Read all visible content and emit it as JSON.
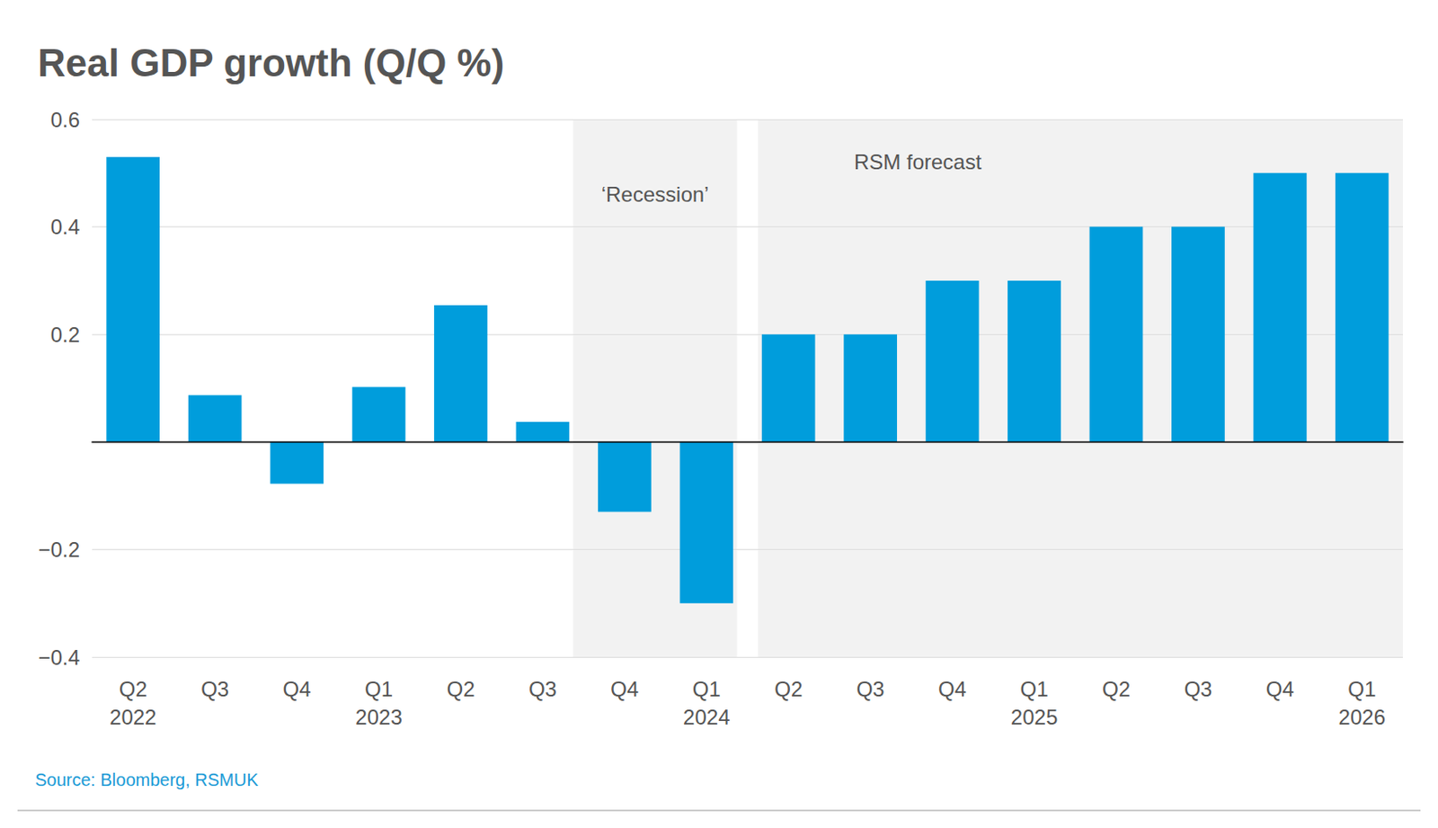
{
  "chart_data": {
    "type": "bar",
    "title": "Real GDP growth (Q/Q %)",
    "categories": [
      "Q2\n2022",
      "Q3",
      "Q4",
      "Q1\n2023",
      "Q2",
      "Q3",
      "Q4",
      "Q1\n2024",
      "Q2",
      "Q3",
      "Q4",
      "Q1\n2025",
      "Q2",
      "Q3",
      "Q4",
      "Q1\n2026"
    ],
    "values": [
      0.53,
      0.087,
      -0.078,
      0.102,
      0.254,
      0.037,
      -0.13,
      -0.3,
      0.2,
      0.2,
      0.3,
      0.3,
      0.4,
      0.4,
      0.5,
      0.5
    ],
    "color": "#009ddc",
    "ylim": [
      -0.4,
      0.6
    ],
    "yticks": [
      {
        "value": -0.4,
        "label": "−0.4"
      },
      {
        "value": -0.2,
        "label": "−0.2"
      },
      0.2,
      0.4,
      0.6
    ],
    "grid": true,
    "annotations": [
      {
        "text": "‘Recession’",
        "start": 6,
        "end": 7
      },
      {
        "text": "RSM forecast",
        "start": 8,
        "end": 15
      }
    ],
    "source": "Source: Bloomberg, RSMUK"
  }
}
